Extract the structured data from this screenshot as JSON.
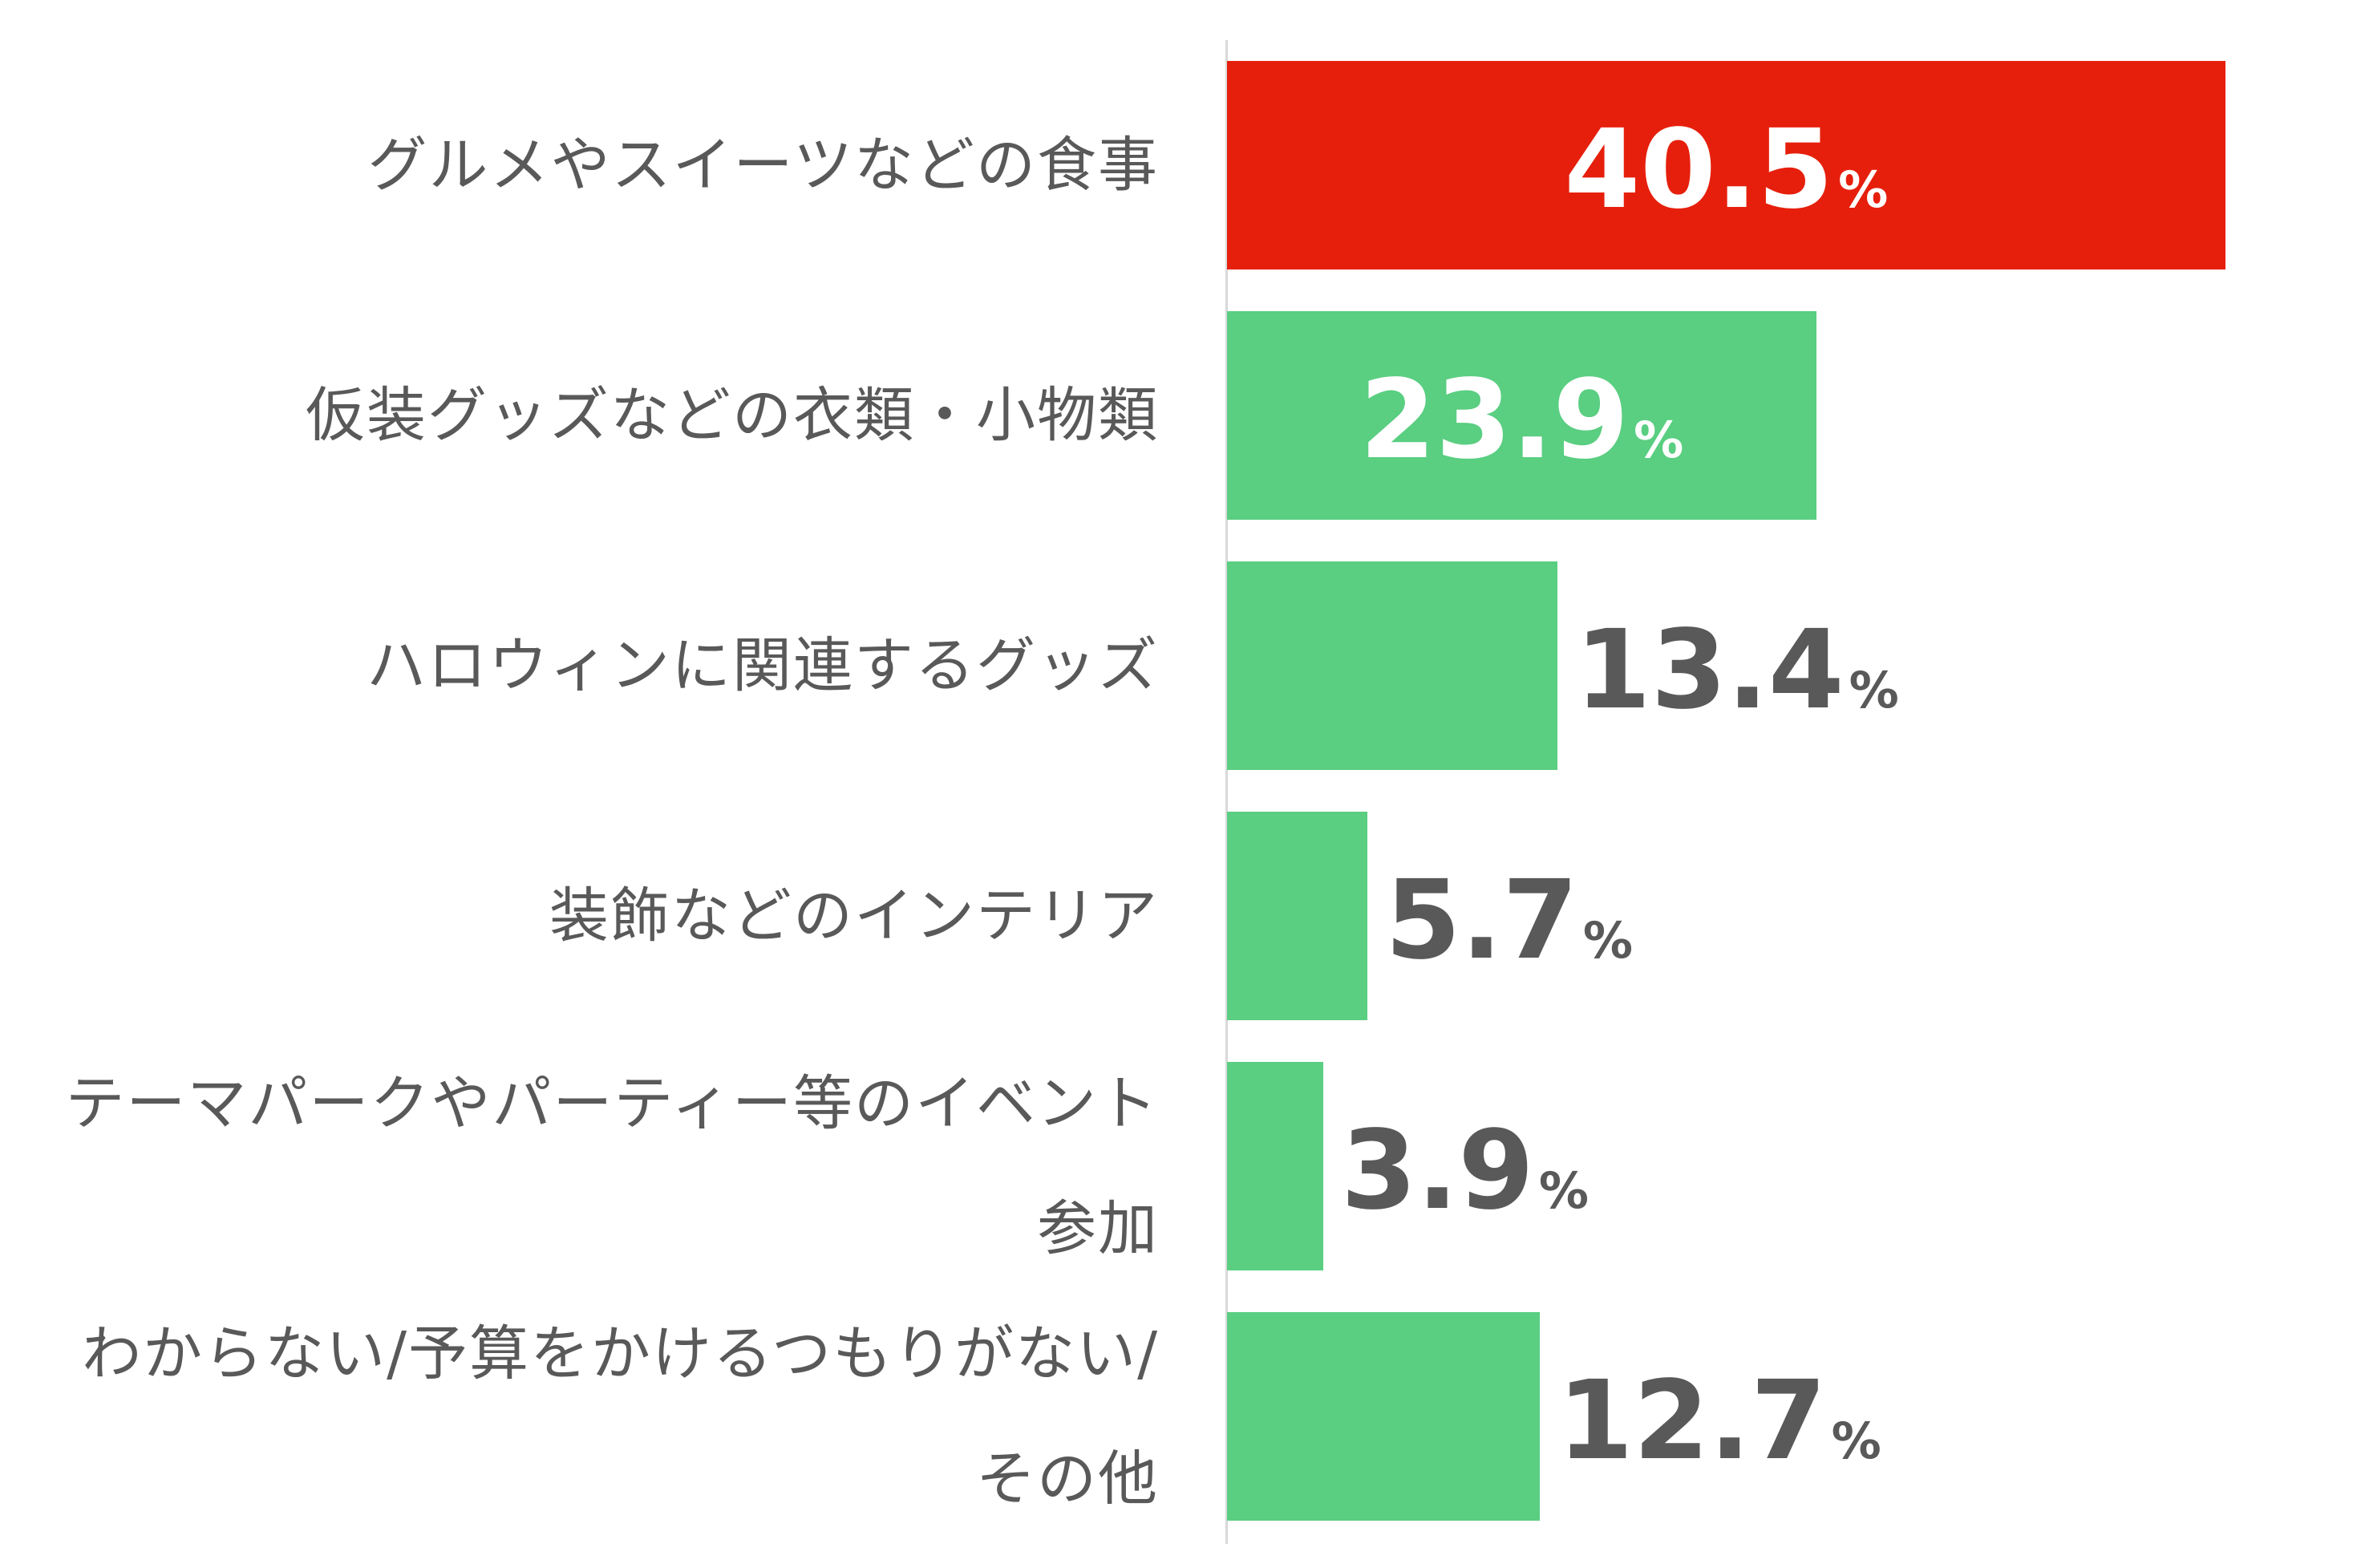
{
  "chart_data": {
    "type": "bar",
    "orientation": "horizontal",
    "categories": [
      "グルメやスイーツなどの食事",
      "仮装グッズなどの衣類・小物類",
      "ハロウィンに関連するグッズ",
      "装飾などのインテリア",
      "テーマパークやパーティー等のイベント参加",
      "わからない/予算をかけるつもりがない/その他"
    ],
    "values": [
      40.5,
      23.9,
      13.4,
      5.7,
      3.9,
      12.7
    ],
    "value_labels": [
      "40.5",
      "23.9",
      "13.4",
      "5.7",
      "3.9",
      "12.7"
    ],
    "unit": "%",
    "xlim": [
      0,
      40.5
    ],
    "grid": false,
    "legend": "none",
    "colors": {
      "highlight": "#e61f0c",
      "default": "#5ace81",
      "label_inside": "#ffffff",
      "label_outside": "#595959",
      "axis": "#d9d9d9",
      "category_text": "#595959"
    }
  }
}
